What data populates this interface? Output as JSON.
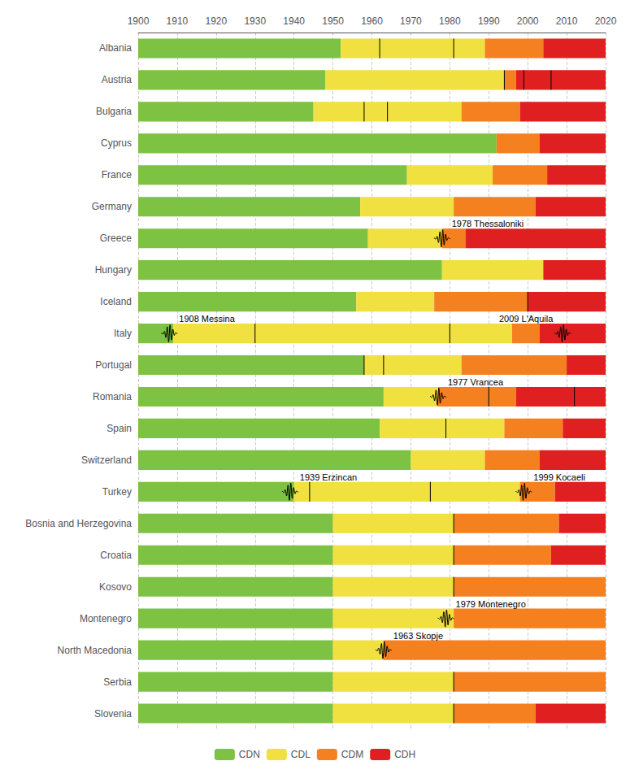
{
  "chart_data": {
    "type": "bar",
    "orientation": "horizontal",
    "categories": [
      "Albania",
      "Austria",
      "Bulgaria",
      "Cyprus",
      "France",
      "Germany",
      "Greece",
      "Hungary",
      "Iceland",
      "Italy",
      "Portugal",
      "Romania",
      "Spain",
      "Switzerland",
      "Turkey",
      "Bosnia and Herzegovina",
      "Croatia",
      "Kosovo",
      "Montenegro",
      "North Macedonia",
      "Serbia",
      "Slovenia"
    ],
    "series": [
      {
        "name": "CDN",
        "color": "#7dc242",
        "values": [
          [
            1900,
            1952
          ],
          [
            1900,
            1948
          ],
          [
            1900,
            1945
          ],
          [
            1900,
            1992
          ],
          [
            1900,
            1969
          ],
          [
            1900,
            1957
          ],
          [
            1900,
            1959
          ],
          [
            1900,
            1978
          ],
          [
            1900,
            1956
          ],
          [
            1900,
            1909
          ],
          [
            1900,
            1958
          ],
          [
            1900,
            1963
          ],
          [
            1900,
            1962
          ],
          [
            1900,
            1970
          ],
          [
            1900,
            1940
          ],
          [
            1900,
            1950
          ],
          [
            1900,
            1950
          ],
          [
            1900,
            1950
          ],
          [
            1900,
            1950
          ],
          [
            1900,
            1950
          ],
          [
            1900,
            1950
          ],
          [
            1900,
            1950
          ]
        ]
      },
      {
        "name": "CDL",
        "color": "#f0e040",
        "values": [
          [
            1952,
            1989
          ],
          [
            1948,
            1994
          ],
          [
            1945,
            1983
          ],
          null,
          [
            1969,
            1991
          ],
          [
            1957,
            1981
          ],
          [
            1959,
            1978
          ],
          [
            1978,
            2004
          ],
          [
            1956,
            1976
          ],
          [
            1909,
            1996
          ],
          [
            1958,
            1983
          ],
          [
            1963,
            1977
          ],
          [
            1962,
            1994
          ],
          [
            1970,
            1989
          ],
          [
            1940,
            1998
          ],
          [
            1950,
            1981
          ],
          [
            1950,
            1981
          ],
          [
            1950,
            1981
          ],
          [
            1950,
            1981
          ],
          [
            1950,
            1963
          ],
          [
            1950,
            1981
          ],
          [
            1950,
            1981
          ]
        ]
      },
      {
        "name": "CDM",
        "color": "#f58020",
        "values": [
          [
            1989,
            2004
          ],
          [
            1994,
            1997
          ],
          [
            1983,
            1998
          ],
          [
            1992,
            2003
          ],
          [
            1991,
            2005
          ],
          [
            1981,
            2002
          ],
          [
            1978,
            1984
          ],
          null,
          [
            1976,
            2000
          ],
          [
            1996,
            2003
          ],
          [
            1983,
            2010
          ],
          [
            1977,
            1997
          ],
          [
            1994,
            2009
          ],
          [
            1989,
            2003
          ],
          [
            1998,
            2007
          ],
          [
            1981,
            2008
          ],
          [
            1981,
            2006
          ],
          [
            1981,
            2020
          ],
          [
            1981,
            2020
          ],
          [
            1963,
            2020
          ],
          [
            1981,
            2020
          ],
          [
            1981,
            2002
          ]
        ]
      },
      {
        "name": "CDH",
        "color": "#e02020",
        "values": [
          [
            2004,
            2020
          ],
          [
            1997,
            2020
          ],
          [
            1998,
            2020
          ],
          [
            2003,
            2020
          ],
          [
            2005,
            2020
          ],
          [
            2002,
            2020
          ],
          [
            1984,
            2020
          ],
          [
            2004,
            2020
          ],
          [
            2000,
            2020
          ],
          [
            2003,
            2020
          ],
          [
            2010,
            2020
          ],
          [
            1997,
            2020
          ],
          [
            2009,
            2020
          ],
          [
            2003,
            2020
          ],
          [
            2007,
            2020
          ],
          [
            2008,
            2020
          ],
          [
            2006,
            2020
          ],
          null,
          null,
          null,
          null,
          [
            2002,
            2020
          ]
        ]
      }
    ],
    "markers": [
      {
        "category": "Albania",
        "x": 1962
      },
      {
        "category": "Albania",
        "x": 1981
      },
      {
        "category": "Austria",
        "x": 1994
      },
      {
        "category": "Austria",
        "x": 1999
      },
      {
        "category": "Austria",
        "x": 2006
      },
      {
        "category": "Bulgaria",
        "x": 1958
      },
      {
        "category": "Bulgaria",
        "x": 1964
      },
      {
        "category": "Greece",
        "x": 1978,
        "label": "1978 Thessaloniki"
      },
      {
        "category": "Iceland",
        "x": 2000
      },
      {
        "category": "Italy",
        "x": 1908,
        "label": "1908 Messina"
      },
      {
        "category": "Italy",
        "x": 1930
      },
      {
        "category": "Italy",
        "x": 1980
      },
      {
        "category": "Italy",
        "x": 2009,
        "label": "2009 L'Aquila"
      },
      {
        "category": "Portugal",
        "x": 1958
      },
      {
        "category": "Portugal",
        "x": 1963
      },
      {
        "category": "Romania",
        "x": 1977,
        "label": "1977 Vrancea"
      },
      {
        "category": "Romania",
        "x": 1990
      },
      {
        "category": "Romania",
        "x": 2012
      },
      {
        "category": "Spain",
        "x": 1979
      },
      {
        "category": "Turkey",
        "x": 1939,
        "label": "1939 Erzincan"
      },
      {
        "category": "Turkey",
        "x": 1944
      },
      {
        "category": "Turkey",
        "x": 1975
      },
      {
        "category": "Turkey",
        "x": 1999,
        "label": "1999 Kocaeli"
      },
      {
        "category": "Bosnia and Herzegovina",
        "x": 1981
      },
      {
        "category": "Croatia",
        "x": 1981
      },
      {
        "category": "Kosovo",
        "x": 1981
      },
      {
        "category": "Montenegro",
        "x": 1979,
        "label": "1979 Montenegro"
      },
      {
        "category": "North Macedonia",
        "x": 1963,
        "label": "1963 Skopje"
      },
      {
        "category": "Serbia",
        "x": 1981
      },
      {
        "category": "Slovenia",
        "x": 1981
      }
    ],
    "xlim": [
      1900,
      2020
    ],
    "xticks": [
      1900,
      1910,
      1920,
      1930,
      1940,
      1950,
      1960,
      1970,
      1980,
      1990,
      2000,
      2010,
      2020
    ],
    "grid": true,
    "legend": "bottom"
  }
}
